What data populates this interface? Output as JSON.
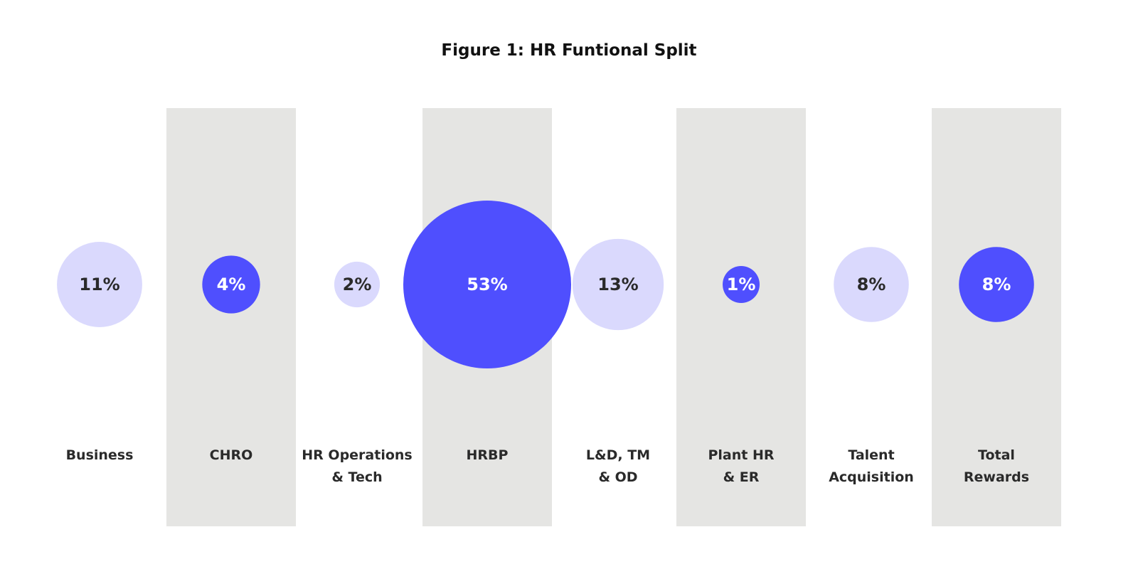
{
  "chart_data": {
    "type": "bubble",
    "title": "Figure 1: HR Funtional Split",
    "categories": [
      "Business",
      "CHRO",
      "HR Operations\n& Tech",
      "HRBP",
      "L&D, TM\n& OD",
      "Plant HR\n& ER",
      "Talent\nAcquisition",
      "Total\nRewards"
    ],
    "values": [
      11,
      4,
      2,
      53,
      13,
      1,
      8,
      8
    ],
    "value_labels": [
      "11%",
      "4%",
      "2%",
      "53%",
      "13%",
      "1%",
      "8%",
      "8%"
    ],
    "highlight": [
      false,
      true,
      false,
      true,
      false,
      true,
      false,
      true
    ],
    "shaded_columns": [
      1,
      3,
      5,
      7
    ],
    "unit": "%"
  },
  "colors": {
    "dark": "#4f4ffe",
    "light": "#dad9fd",
    "band": "#e5e5e3",
    "text": "#2a2a2a"
  }
}
